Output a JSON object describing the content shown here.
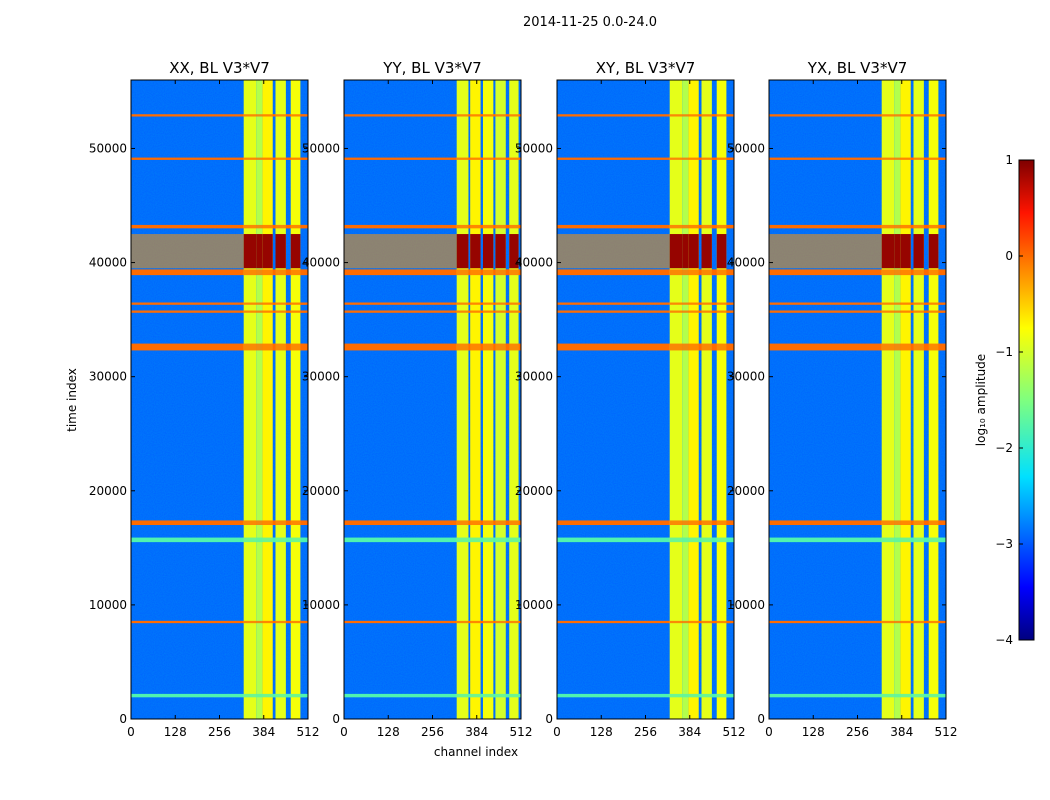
{
  "chart_data": {
    "type": "heatmap",
    "title": "2014-11-25 0.0-24.0",
    "xlabel": "channel index",
    "ylabel": "time index",
    "xlim": [
      0,
      512
    ],
    "ylim": [
      0,
      56000
    ],
    "xticks": [
      "0",
      "128",
      "256",
      "384",
      "512"
    ],
    "yticks": [
      "0",
      "10000",
      "20000",
      "30000",
      "40000",
      "50000"
    ],
    "panels": [
      {
        "title": "XX, BL V3*V7",
        "bands": [
          {
            "x0": 326,
            "x1": 362,
            "level": -0.9
          },
          {
            "x0": 362,
            "x1": 380,
            "level": -1.2
          },
          {
            "x0": 380,
            "x1": 410,
            "level": -0.7
          },
          {
            "x0": 418,
            "x1": 448,
            "level": -0.9
          },
          {
            "x0": 462,
            "x1": 490,
            "level": -0.8
          }
        ]
      },
      {
        "title": "YY, BL V3*V7",
        "bands": [
          {
            "x0": 326,
            "x1": 360,
            "level": -0.9
          },
          {
            "x0": 365,
            "x1": 395,
            "level": -0.7
          },
          {
            "x0": 402,
            "x1": 432,
            "level": -0.8
          },
          {
            "x0": 438,
            "x1": 468,
            "level": -1.0
          },
          {
            "x0": 478,
            "x1": 505,
            "level": -0.9
          }
        ]
      },
      {
        "title": "XY, BL V3*V7",
        "bands": [
          {
            "x0": 326,
            "x1": 362,
            "level": -0.9
          },
          {
            "x0": 362,
            "x1": 380,
            "level": -1.2
          },
          {
            "x0": 380,
            "x1": 410,
            "level": -0.7
          },
          {
            "x0": 418,
            "x1": 448,
            "level": -0.9
          },
          {
            "x0": 462,
            "x1": 490,
            "level": -0.8
          }
        ]
      },
      {
        "title": "YX, BL V3*V7",
        "bands": [
          {
            "x0": 326,
            "x1": 362,
            "level": -0.9
          },
          {
            "x0": 362,
            "x1": 380,
            "level": -1.2
          },
          {
            "x0": 380,
            "x1": 410,
            "level": -0.7
          },
          {
            "x0": 418,
            "x1": 448,
            "level": -0.9
          },
          {
            "x0": 462,
            "x1": 490,
            "level": -0.8
          }
        ]
      }
    ],
    "hot_region": {
      "t0": 39500,
      "t1": 42500,
      "level": 0.9
    },
    "flagged_rows": [
      {
        "t0": 17000,
        "t1": 17400,
        "level": 0.0
      },
      {
        "t0": 32300,
        "t1": 32900,
        "level": 0.0
      },
      {
        "t0": 38900,
        "t1": 39400,
        "level": 0.0
      },
      {
        "t0": 36300,
        "t1": 36500,
        "level": 0.0
      },
      {
        "t0": 35600,
        "t1": 35800,
        "level": 0.0
      },
      {
        "t0": 49000,
        "t1": 49200,
        "level": 0.0
      },
      {
        "t0": 52800,
        "t1": 53000,
        "level": 0.0
      },
      {
        "t0": 43000,
        "t1": 43300,
        "level": 0.0
      },
      {
        "t0": 8400,
        "t1": 8600,
        "level": 0.0
      },
      {
        "t0": 1900,
        "t1": 2200,
        "level": -1.8
      },
      {
        "t0": 15500,
        "t1": 15900,
        "level": -1.8
      }
    ],
    "colorbar": {
      "label": "log₁₀ amplitude",
      "range": [
        -4,
        1
      ],
      "ticks": [
        "1",
        "0",
        "−1",
        "−2",
        "−3",
        "−4"
      ],
      "colormap": "jet"
    }
  }
}
